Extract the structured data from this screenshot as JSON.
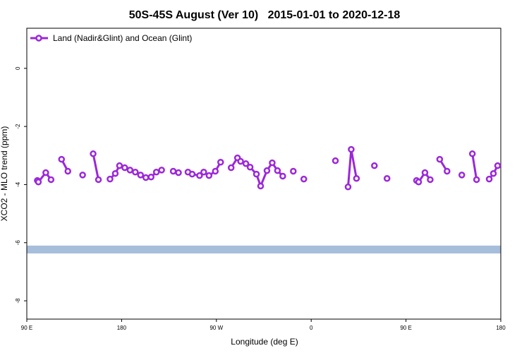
{
  "chart_data": {
    "type": "line",
    "title": "50S-45S August (Ver 10)   2015-01-01 to 2020-12-18",
    "x_label": "Longitude (deg E)",
    "y_label": "XCO2 - MLO trend (ppm)",
    "xlim": [
      90,
      540
    ],
    "xticks": [
      {
        "value": 90,
        "label": "90 E"
      },
      {
        "value": 180,
        "label": "180"
      },
      {
        "value": 270,
        "label": "90 W"
      },
      {
        "value": 360,
        "label": "0"
      },
      {
        "value": 450,
        "label": "90 E"
      },
      {
        "value": 540,
        "label": "180"
      }
    ],
    "ylim": [
      -8.63,
      1.38
    ],
    "yticks": [
      0,
      -2,
      -4,
      -6,
      -8
    ],
    "legend_position": "top-left",
    "band_range": [
      -6.1,
      -6.37
    ],
    "band_color": "#a7bedb",
    "series": [
      {
        "name": "Land (Nadir&Glint) and Ocean (Glint)",
        "color": "#9b27d9",
        "x": [
          100,
          101,
          108,
          113,
          null,
          123,
          129,
          null,
          143,
          null,
          153,
          158,
          null,
          169,
          174,
          178,
          183,
          188,
          193,
          198,
          203,
          208,
          213,
          218,
          null,
          229,
          234,
          null,
          243,
          247,
          254,
          258,
          263,
          269,
          274,
          null,
          284,
          290,
          293,
          298,
          302,
          308,
          312,
          318,
          323,
          328,
          333,
          null,
          343,
          null,
          353,
          null,
          383,
          null,
          395,
          398,
          403,
          null,
          420,
          null,
          432,
          null,
          460,
          462,
          468,
          473,
          null,
          482,
          489,
          null,
          503,
          null,
          513,
          517,
          null,
          529,
          533,
          537
        ],
        "values": [
          -3.86,
          -3.91,
          -3.59,
          -3.83,
          null,
          -3.13,
          -3.54,
          null,
          -3.67,
          null,
          -2.94,
          -3.83,
          null,
          -3.81,
          -3.62,
          -3.35,
          -3.42,
          -3.5,
          -3.57,
          -3.67,
          -3.76,
          -3.74,
          -3.57,
          -3.5,
          null,
          -3.54,
          -3.59,
          null,
          -3.57,
          -3.64,
          -3.69,
          -3.57,
          -3.69,
          -3.54,
          -3.23,
          null,
          -3.42,
          -3.08,
          -3.2,
          -3.28,
          -3.4,
          -3.64,
          -4.05,
          -3.52,
          -3.25,
          -3.52,
          -3.71,
          null,
          -3.54,
          null,
          -3.81,
          null,
          -3.18,
          null,
          -4.08,
          -2.79,
          -3.79,
          null,
          -3.35,
          null,
          -3.79,
          null,
          -3.86,
          -3.91,
          -3.59,
          -3.83,
          null,
          -3.13,
          -3.54,
          null,
          -3.67,
          null,
          -2.94,
          -3.83,
          null,
          -3.81,
          -3.62,
          -3.35
        ]
      }
    ]
  }
}
